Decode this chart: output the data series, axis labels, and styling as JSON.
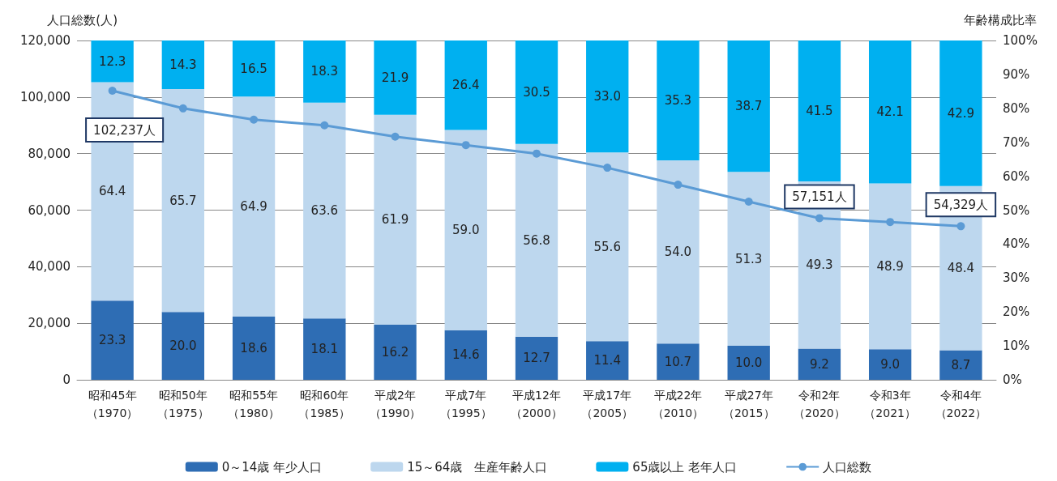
{
  "chart_data": {
    "type": "bar",
    "stacked": true,
    "ylabel": "人口総数(人)",
    "y2label": "年齢構成比率",
    "categories": [
      "昭和45年（1970）",
      "昭和50年（1975）",
      "昭和55年（1980）",
      "昭和60年（1985）",
      "平成2年（1990）",
      "平成7年（1995）",
      "平成12年（2000）",
      "平成17年（2005）",
      "平成22年（2010）",
      "平成27年（2015）",
      "令和2年（2020）",
      "令和3年（2021）",
      "令和4年（2022）"
    ],
    "series": [
      {
        "name": "0～14歳 年少人口",
        "color": "#2e6db4",
        "axis": "y2",
        "values": [
          23.3,
          20.0,
          18.6,
          18.1,
          16.2,
          14.6,
          12.7,
          11.4,
          10.7,
          10.0,
          9.2,
          9.0,
          8.7
        ],
        "value_labels": [
          "23.3",
          "20.0",
          "18.6",
          "18.1",
          "16.2",
          "14.6",
          "12.7",
          "11.4",
          "10.7",
          "10.0",
          "9.2",
          "9.0",
          "8.7"
        ]
      },
      {
        "name": "15～64歳　生産年齢人口",
        "color": "#bdd7ee",
        "axis": "y2",
        "values": [
          64.4,
          65.7,
          64.9,
          63.6,
          61.9,
          59.0,
          56.8,
          55.6,
          54.0,
          51.3,
          49.3,
          48.9,
          48.4
        ],
        "value_labels": [
          "64.4",
          "65.7",
          "64.9",
          "63.6",
          "61.9",
          "59.0",
          "56.8",
          "55.6",
          "54.0",
          "51.3",
          "49.3",
          "48.9",
          "48.4"
        ]
      },
      {
        "name": "65歳以上 老年人口",
        "color": "#00b0f0",
        "axis": "y2",
        "values": [
          12.3,
          14.3,
          16.5,
          18.3,
          21.9,
          26.4,
          30.5,
          33.0,
          35.3,
          38.7,
          41.5,
          42.1,
          42.9
        ],
        "value_labels": [
          "12.3",
          "14.3",
          "16.5",
          "18.3",
          "21.9",
          "26.4",
          "30.5",
          "33.0",
          "35.3",
          "38.7",
          "41.5",
          "42.1",
          "42.9"
        ]
      },
      {
        "name": "人口総数",
        "type": "line",
        "color": "#5b9bd5",
        "axis": "y",
        "values": [
          102237,
          96000,
          92000,
          90000,
          86000,
          83000,
          80000,
          75000,
          69000,
          63000,
          57151,
          55800,
          54329
        ],
        "value_labels": [
          "102,237人",
          null,
          null,
          null,
          null,
          null,
          null,
          null,
          null,
          null,
          "57,151人",
          null,
          "54,329人"
        ]
      }
    ],
    "ylim": [
      0,
      120000
    ],
    "yticks": [
      {
        "value": 0,
        "label": "0"
      },
      {
        "value": 20000,
        "label": "20,000"
      },
      {
        "value": 40000,
        "label": "40,000"
      },
      {
        "value": 60000,
        "label": "60,000"
      },
      {
        "value": 80000,
        "label": "80,000"
      },
      {
        "value": 100000,
        "label": "100,000"
      },
      {
        "value": 120000,
        "label": "120,000"
      }
    ],
    "y2lim": [
      0,
      100
    ],
    "y2ticks": [
      {
        "value": 0,
        "label": "0%"
      },
      {
        "value": 10,
        "label": "10%"
      },
      {
        "value": 20,
        "label": "20%"
      },
      {
        "value": 30,
        "label": "30%"
      },
      {
        "value": 40,
        "label": "40%"
      },
      {
        "value": 50,
        "label": "50%"
      },
      {
        "value": 60,
        "label": "60%"
      },
      {
        "value": 70,
        "label": "70%"
      },
      {
        "value": 80,
        "label": "80%"
      },
      {
        "value": 90,
        "label": "90%"
      },
      {
        "value": 100,
        "label": "100%"
      }
    ],
    "grid": "y",
    "legend": "bottom",
    "marker": "circle",
    "line_style": "solid"
  }
}
